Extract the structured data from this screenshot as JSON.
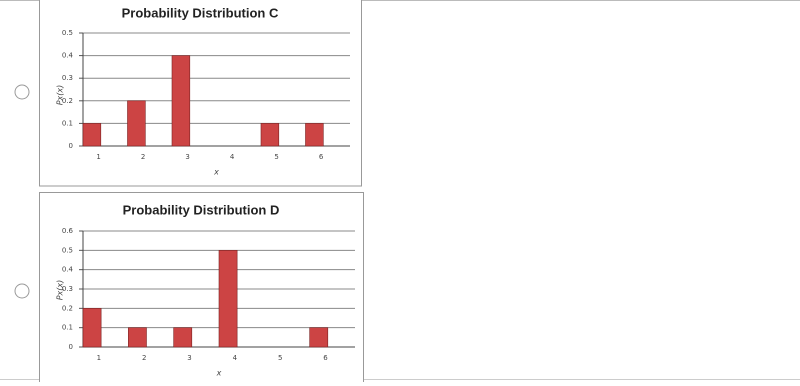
{
  "chart_data": [
    {
      "type": "bar",
      "title": "Probability Distribution C",
      "x_label": "x",
      "y_label": "Px(x)",
      "categories": [
        "1",
        "2",
        "3",
        "4",
        "5",
        "6"
      ],
      "values": [
        0.1,
        0.2,
        0.4,
        0,
        0.1,
        0.1
      ],
      "color": "#cc4444",
      "ylim": [
        0,
        0.5
      ],
      "yticks": [
        0,
        0.1,
        0.2,
        0.3,
        0.4,
        0.5
      ],
      "grid": true
    },
    {
      "type": "bar",
      "title": "Probability Distribution D",
      "x_label": "x",
      "y_label": "Px(x)",
      "categories": [
        "1",
        "2",
        "3",
        "4",
        "5",
        "6"
      ],
      "values": [
        0.2,
        0.1,
        0.1,
        0.5,
        0,
        0.1
      ],
      "color": "#cc4444",
      "ylim": [
        0,
        0.6
      ],
      "yticks": [
        0,
        0.1,
        0.2,
        0.3,
        0.4,
        0.5,
        0.6
      ],
      "grid": true
    }
  ]
}
